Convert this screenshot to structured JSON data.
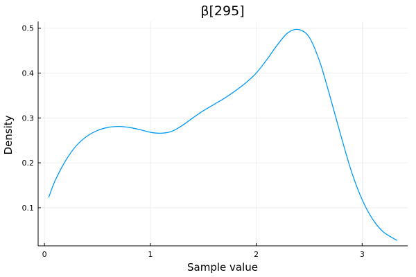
{
  "chart_data": {
    "type": "line",
    "title": "β[295]",
    "xlabel": "Sample value",
    "ylabel": "Density",
    "xlim": [
      -0.06,
      3.43
    ],
    "ylim": [
      0.015,
      0.515
    ],
    "xticks": [
      0,
      1,
      2,
      3
    ],
    "xtick_labels": [
      "0",
      "1",
      "2",
      "3"
    ],
    "yticks": [
      0.1,
      0.2,
      0.3,
      0.4,
      0.5
    ],
    "ytick_labels": [
      "0.1",
      "0.2",
      "0.3",
      "0.4",
      "0.5"
    ],
    "grid": true,
    "legend": "none",
    "colors": {
      "series": "#009af9"
    },
    "series": [
      {
        "x": [
          0.04,
          0.1,
          0.2,
          0.3,
          0.4,
          0.5,
          0.6,
          0.7,
          0.8,
          0.9,
          1.0,
          1.1,
          1.2,
          1.3,
          1.4,
          1.5,
          1.6,
          1.7,
          1.8,
          1.9,
          2.0,
          2.1,
          2.2,
          2.3,
          2.4,
          2.5,
          2.6,
          2.7,
          2.8,
          2.9,
          3.0,
          3.1,
          3.2,
          3.33
        ],
        "y": [
          0.123,
          0.16,
          0.205,
          0.238,
          0.259,
          0.272,
          0.279,
          0.281,
          0.279,
          0.274,
          0.268,
          0.266,
          0.27,
          0.283,
          0.3,
          0.316,
          0.33,
          0.344,
          0.36,
          0.378,
          0.4,
          0.43,
          0.463,
          0.49,
          0.497,
          0.48,
          0.425,
          0.345,
          0.26,
          0.18,
          0.118,
          0.074,
          0.046,
          0.027
        ]
      }
    ]
  }
}
